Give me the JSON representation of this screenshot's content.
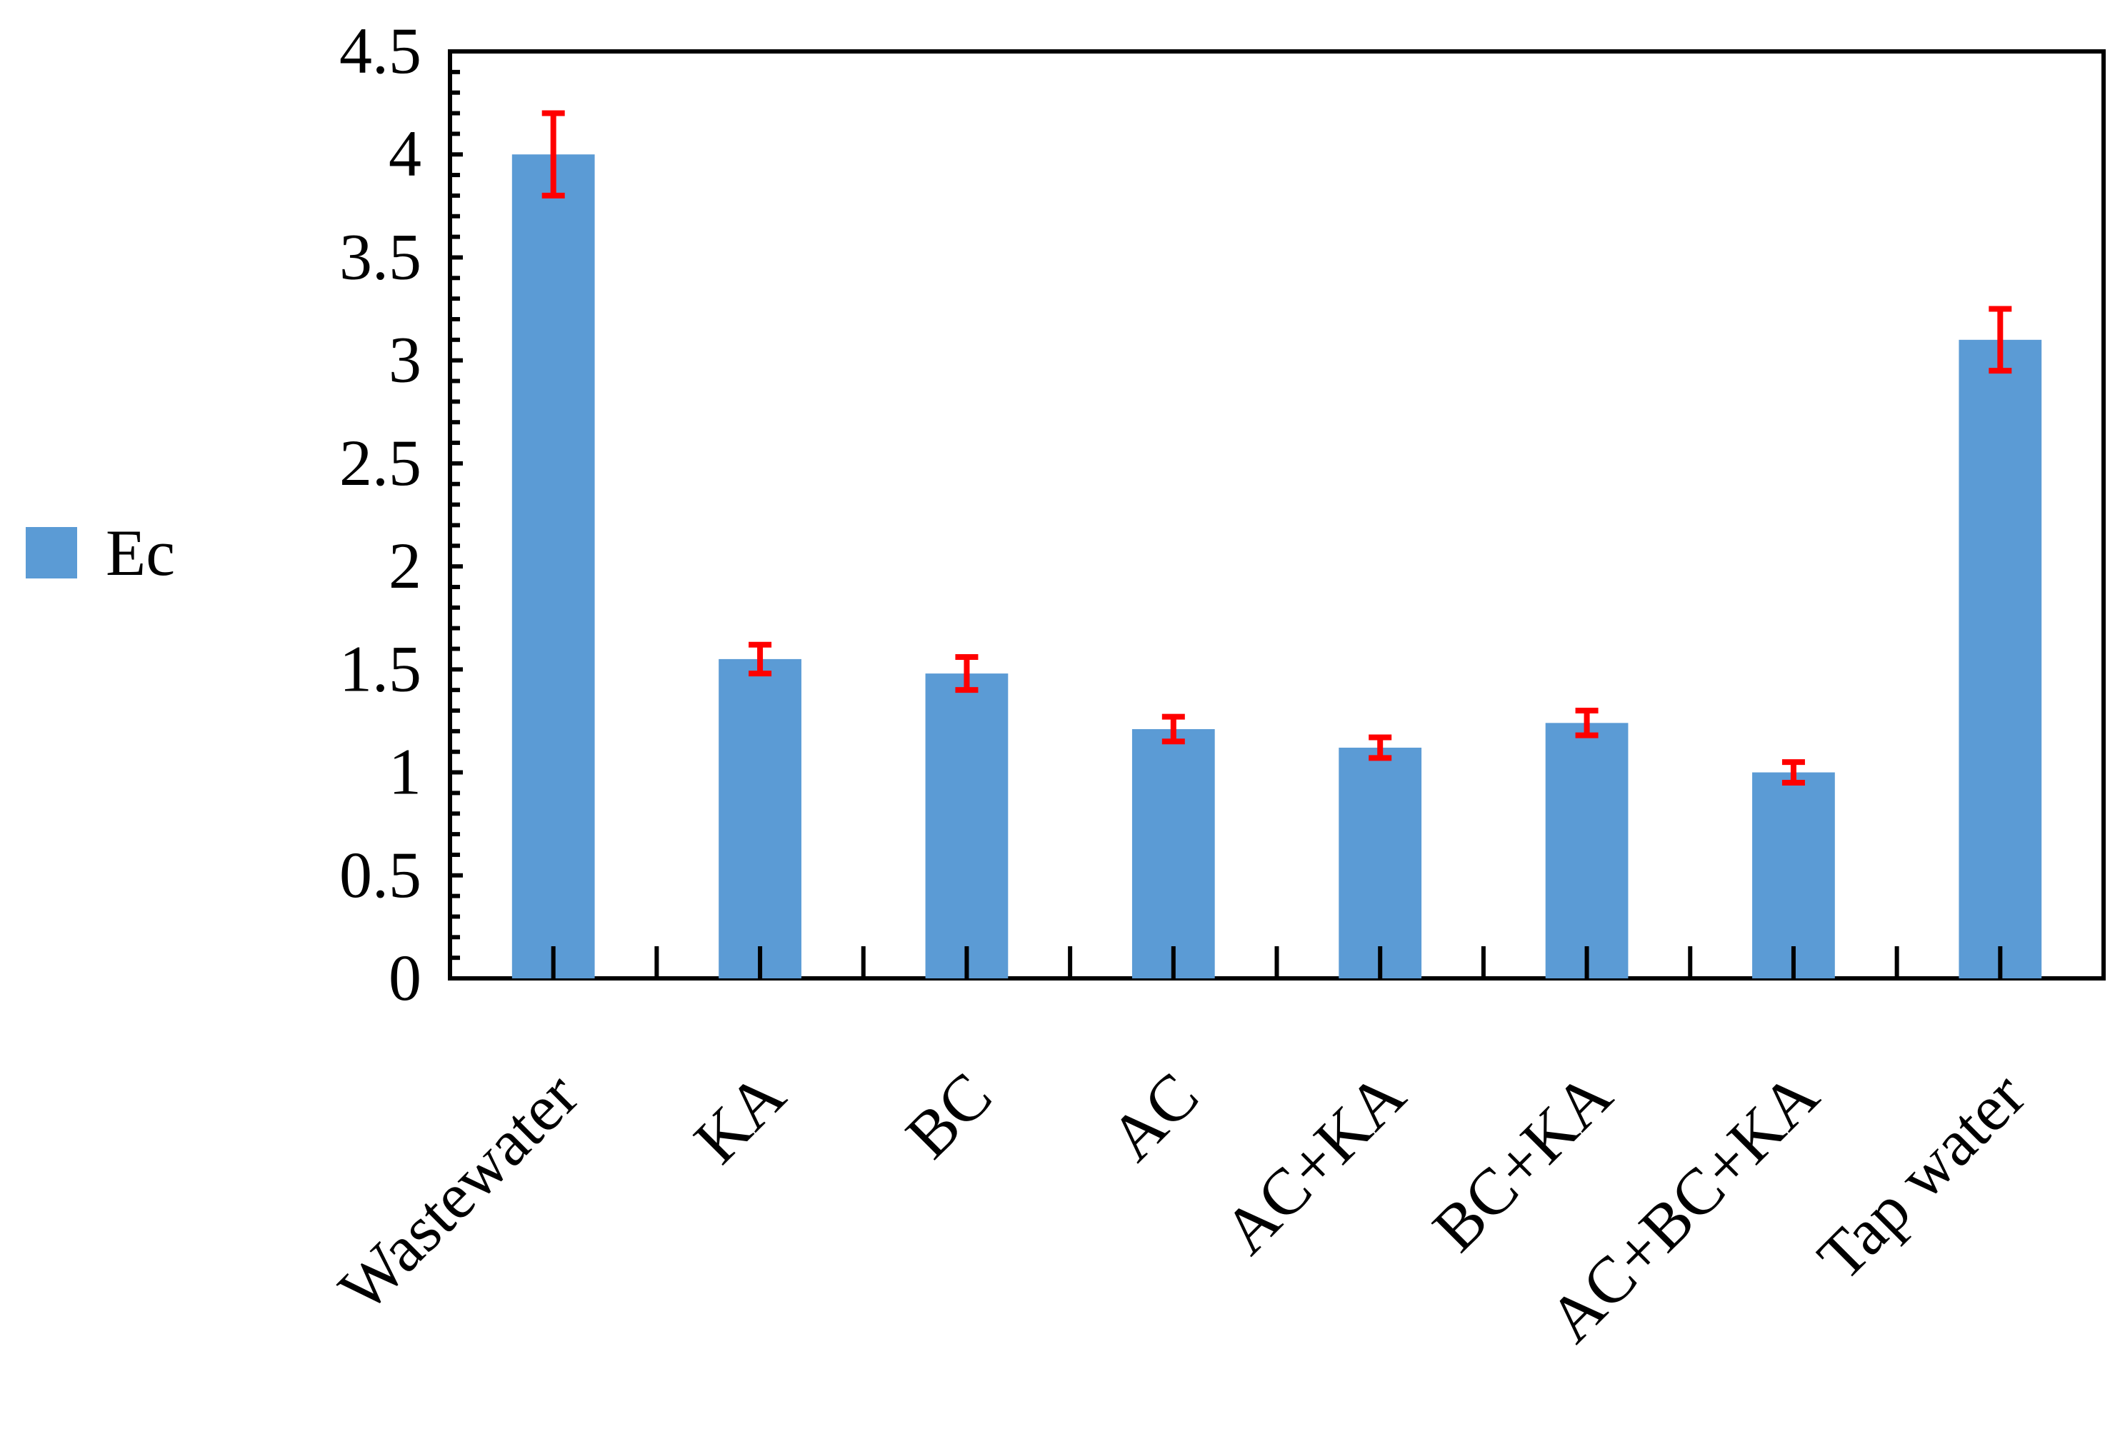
{
  "chart_data": {
    "type": "bar",
    "title": "",
    "xlabel": "",
    "ylabel": "",
    "categories": [
      "Wastewater",
      "KA",
      "BC",
      "AC",
      "AC+KA",
      "BC+KA",
      "AC+BC+KA",
      "Tap water"
    ],
    "series": [
      {
        "name": "Ec",
        "values": [
          4.0,
          1.55,
          1.48,
          1.21,
          1.12,
          1.24,
          1.0,
          3.1
        ],
        "error": [
          0.2,
          0.07,
          0.08,
          0.06,
          0.05,
          0.06,
          0.05,
          0.15
        ],
        "color": "#5b9bd5"
      }
    ],
    "error_bar_color": "#ff0000",
    "ylim": [
      0,
      4.5
    ],
    "yticks": [
      "0",
      "0.5",
      "1",
      "1.5",
      "2",
      "2.5",
      "3",
      "3.5",
      "4",
      "4.5"
    ],
    "grid": false,
    "legend": "left"
  }
}
